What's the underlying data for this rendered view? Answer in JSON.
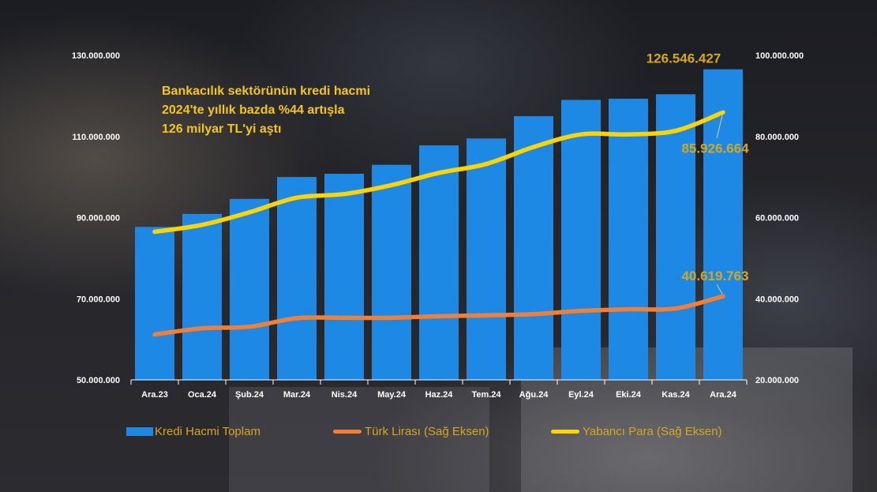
{
  "headline": [
    "Bankacılık sektörünün kredi hacmi",
    "2024'te yıllık bazda %44 artışla",
    "126 milyar TL'yi aştı"
  ],
  "chart_data": {
    "type": "bar",
    "categories": [
      "Ara.23",
      "Oca.24",
      "Şub.24",
      "Mar.24",
      "Nis.24",
      "May.24",
      "Haz.24",
      "Tem.24",
      "Ağu.24",
      "Eyl.24",
      "Eki.24",
      "Kas.24",
      "Ara.24"
    ],
    "series": [
      {
        "name": "Kredi Hacmi Toplam",
        "type": "bar",
        "axis": "left",
        "color": "#1e88e5",
        "values": [
          87700000,
          90900000,
          94600000,
          100000000,
          100800000,
          103000000,
          107800000,
          109500000,
          115000000,
          119000000,
          119300000,
          120400000,
          126546427
        ]
      },
      {
        "name": "Türk Lirası (Sağ Eksen)",
        "type": "line",
        "axis": "right",
        "color": "#f07f38",
        "values": [
          31200000,
          32700000,
          33100000,
          35200000,
          35300000,
          35300000,
          35700000,
          35900000,
          36200000,
          37000000,
          37400000,
          37600000,
          40619763
        ]
      },
      {
        "name": "Yabancı Para (Sağ Eksen)",
        "type": "line",
        "axis": "right",
        "color": "#ffd400",
        "values": [
          56500000,
          58200000,
          61300000,
          64900000,
          65800000,
          68000000,
          71000000,
          73200000,
          77400000,
          80500000,
          80500000,
          81400000,
          85926664
        ]
      }
    ],
    "y_left": {
      "min": 50000000,
      "max": 130000000,
      "ticks": [
        "50.000.000",
        "70.000.000",
        "90.000.000",
        "110.000.000",
        "130.000.000"
      ]
    },
    "y_right": {
      "min": 20000000,
      "max": 100000000,
      "ticks": [
        "20.000.000",
        "40.000.000",
        "60.000.000",
        "80.000.000",
        "100.000.000"
      ]
    },
    "annotations": [
      {
        "series": 0,
        "text": "126.546.427"
      },
      {
        "series": 2,
        "text": "85.926.664"
      },
      {
        "series": 1,
        "text": "40.619.763"
      }
    ],
    "legend": "bottom",
    "grid": false
  }
}
